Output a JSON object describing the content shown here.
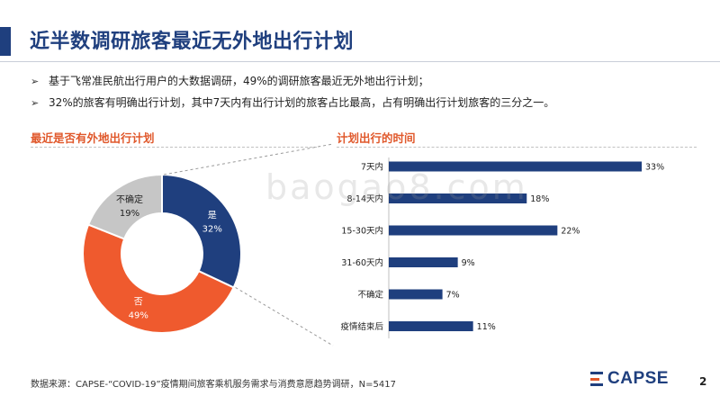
{
  "header": {
    "title": "近半数调研旅客最近无外地出行计划"
  },
  "bullets": [
    "基于飞常准民航出行用户的大数据调研，49%的调研旅客最近无外地出行计划；",
    "32%的旅客有明确出行计划，其中7天内有出行计划的旅客占比最高，占有明确出行计划旅客的三分之一。"
  ],
  "bullet_mark": "➢",
  "watermark": "baogao8.com",
  "footer": {
    "source": "数据来源：CAPSE-“COVID-19”疫情期间旅客乘机服务需求与消费意愿趋势调研，N=5417",
    "page_number": "2",
    "logo_text": "CAPSE"
  },
  "colors": {
    "navy": "#1f3f7e",
    "orange": "#ef5a2e",
    "gray": "#c6c6c6",
    "title_accent": "#e0582b"
  },
  "chart_data": [
    {
      "type": "pie",
      "title": "最近是否有外地出行计划",
      "categories": [
        "是",
        "否",
        "不确定"
      ],
      "values": [
        32,
        49,
        19
      ],
      "value_labels": [
        "32%",
        "49%",
        "19%"
      ],
      "colors": [
        "#1f3f7e",
        "#ef5a2e",
        "#c6c6c6"
      ],
      "donut": true
    },
    {
      "type": "bar",
      "orientation": "horizontal",
      "title": "计划出行的时间",
      "categories": [
        "7天内",
        "8-14天内",
        "15-30天内",
        "31-60天内",
        "不确定",
        "疫情结束后"
      ],
      "values": [
        33,
        18,
        22,
        9,
        7,
        11
      ],
      "value_labels": [
        "33%",
        "18%",
        "22%",
        "9%",
        "7%",
        "11%"
      ],
      "xlim": [
        0,
        33
      ],
      "color": "#1f3f7e"
    }
  ]
}
